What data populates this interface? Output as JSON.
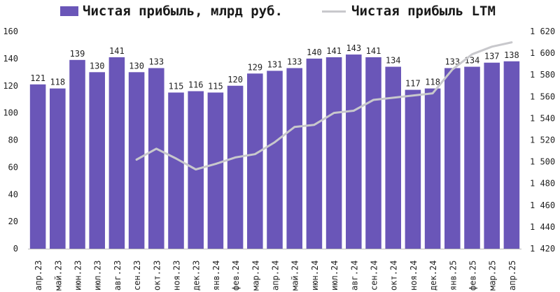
{
  "chart_data": {
    "type": "bar+line",
    "categories": [
      "апр.23",
      "май.23",
      "июн.23",
      "июл.23",
      "авг.23",
      "сен.23",
      "окт.23",
      "ноя.23",
      "дек.23",
      "янв.24",
      "фев.24",
      "мар.24",
      "апр.24",
      "май.24",
      "июн.24",
      "июл.24",
      "авг.24",
      "сен.24",
      "окт.24",
      "ноя.24",
      "дек.24",
      "янв.25",
      "фев.25",
      "мар.25",
      "апр.25"
    ],
    "series": [
      {
        "name": "Чистая прибыль, млрд руб.",
        "type": "bar",
        "axis": "left",
        "color": "#6a56b8",
        "values": [
          121,
          118,
          139,
          130,
          141,
          130,
          133,
          115,
          116,
          115,
          120,
          129,
          131,
          133,
          140,
          141,
          143,
          141,
          134,
          117,
          118,
          133,
          134,
          137,
          138
        ]
      },
      {
        "name": "Чистая прибыль LTM",
        "type": "line",
        "axis": "right",
        "color": "#c8c8cc",
        "values": [
          null,
          null,
          null,
          null,
          null,
          1502,
          1512,
          1503,
          1493,
          1498,
          1504,
          1507,
          1518,
          1532,
          1534,
          1545,
          1547,
          1557,
          1559,
          1561,
          1563,
          1585,
          1599,
          1606,
          1610
        ]
      }
    ],
    "y_left": {
      "min": 0,
      "max": 160,
      "ticks": [
        "0",
        "20",
        "40",
        "60",
        "80",
        "100",
        "120",
        "140",
        "160"
      ]
    },
    "y_right": {
      "min": 1420,
      "max": 1620,
      "ticks": [
        "1 420",
        "1 440",
        "1 460",
        "1 480",
        "1 500",
        "1 520",
        "1 540",
        "1 560",
        "1 580",
        "1 600",
        "1 620"
      ]
    },
    "grid": false,
    "legend_position": "top"
  }
}
